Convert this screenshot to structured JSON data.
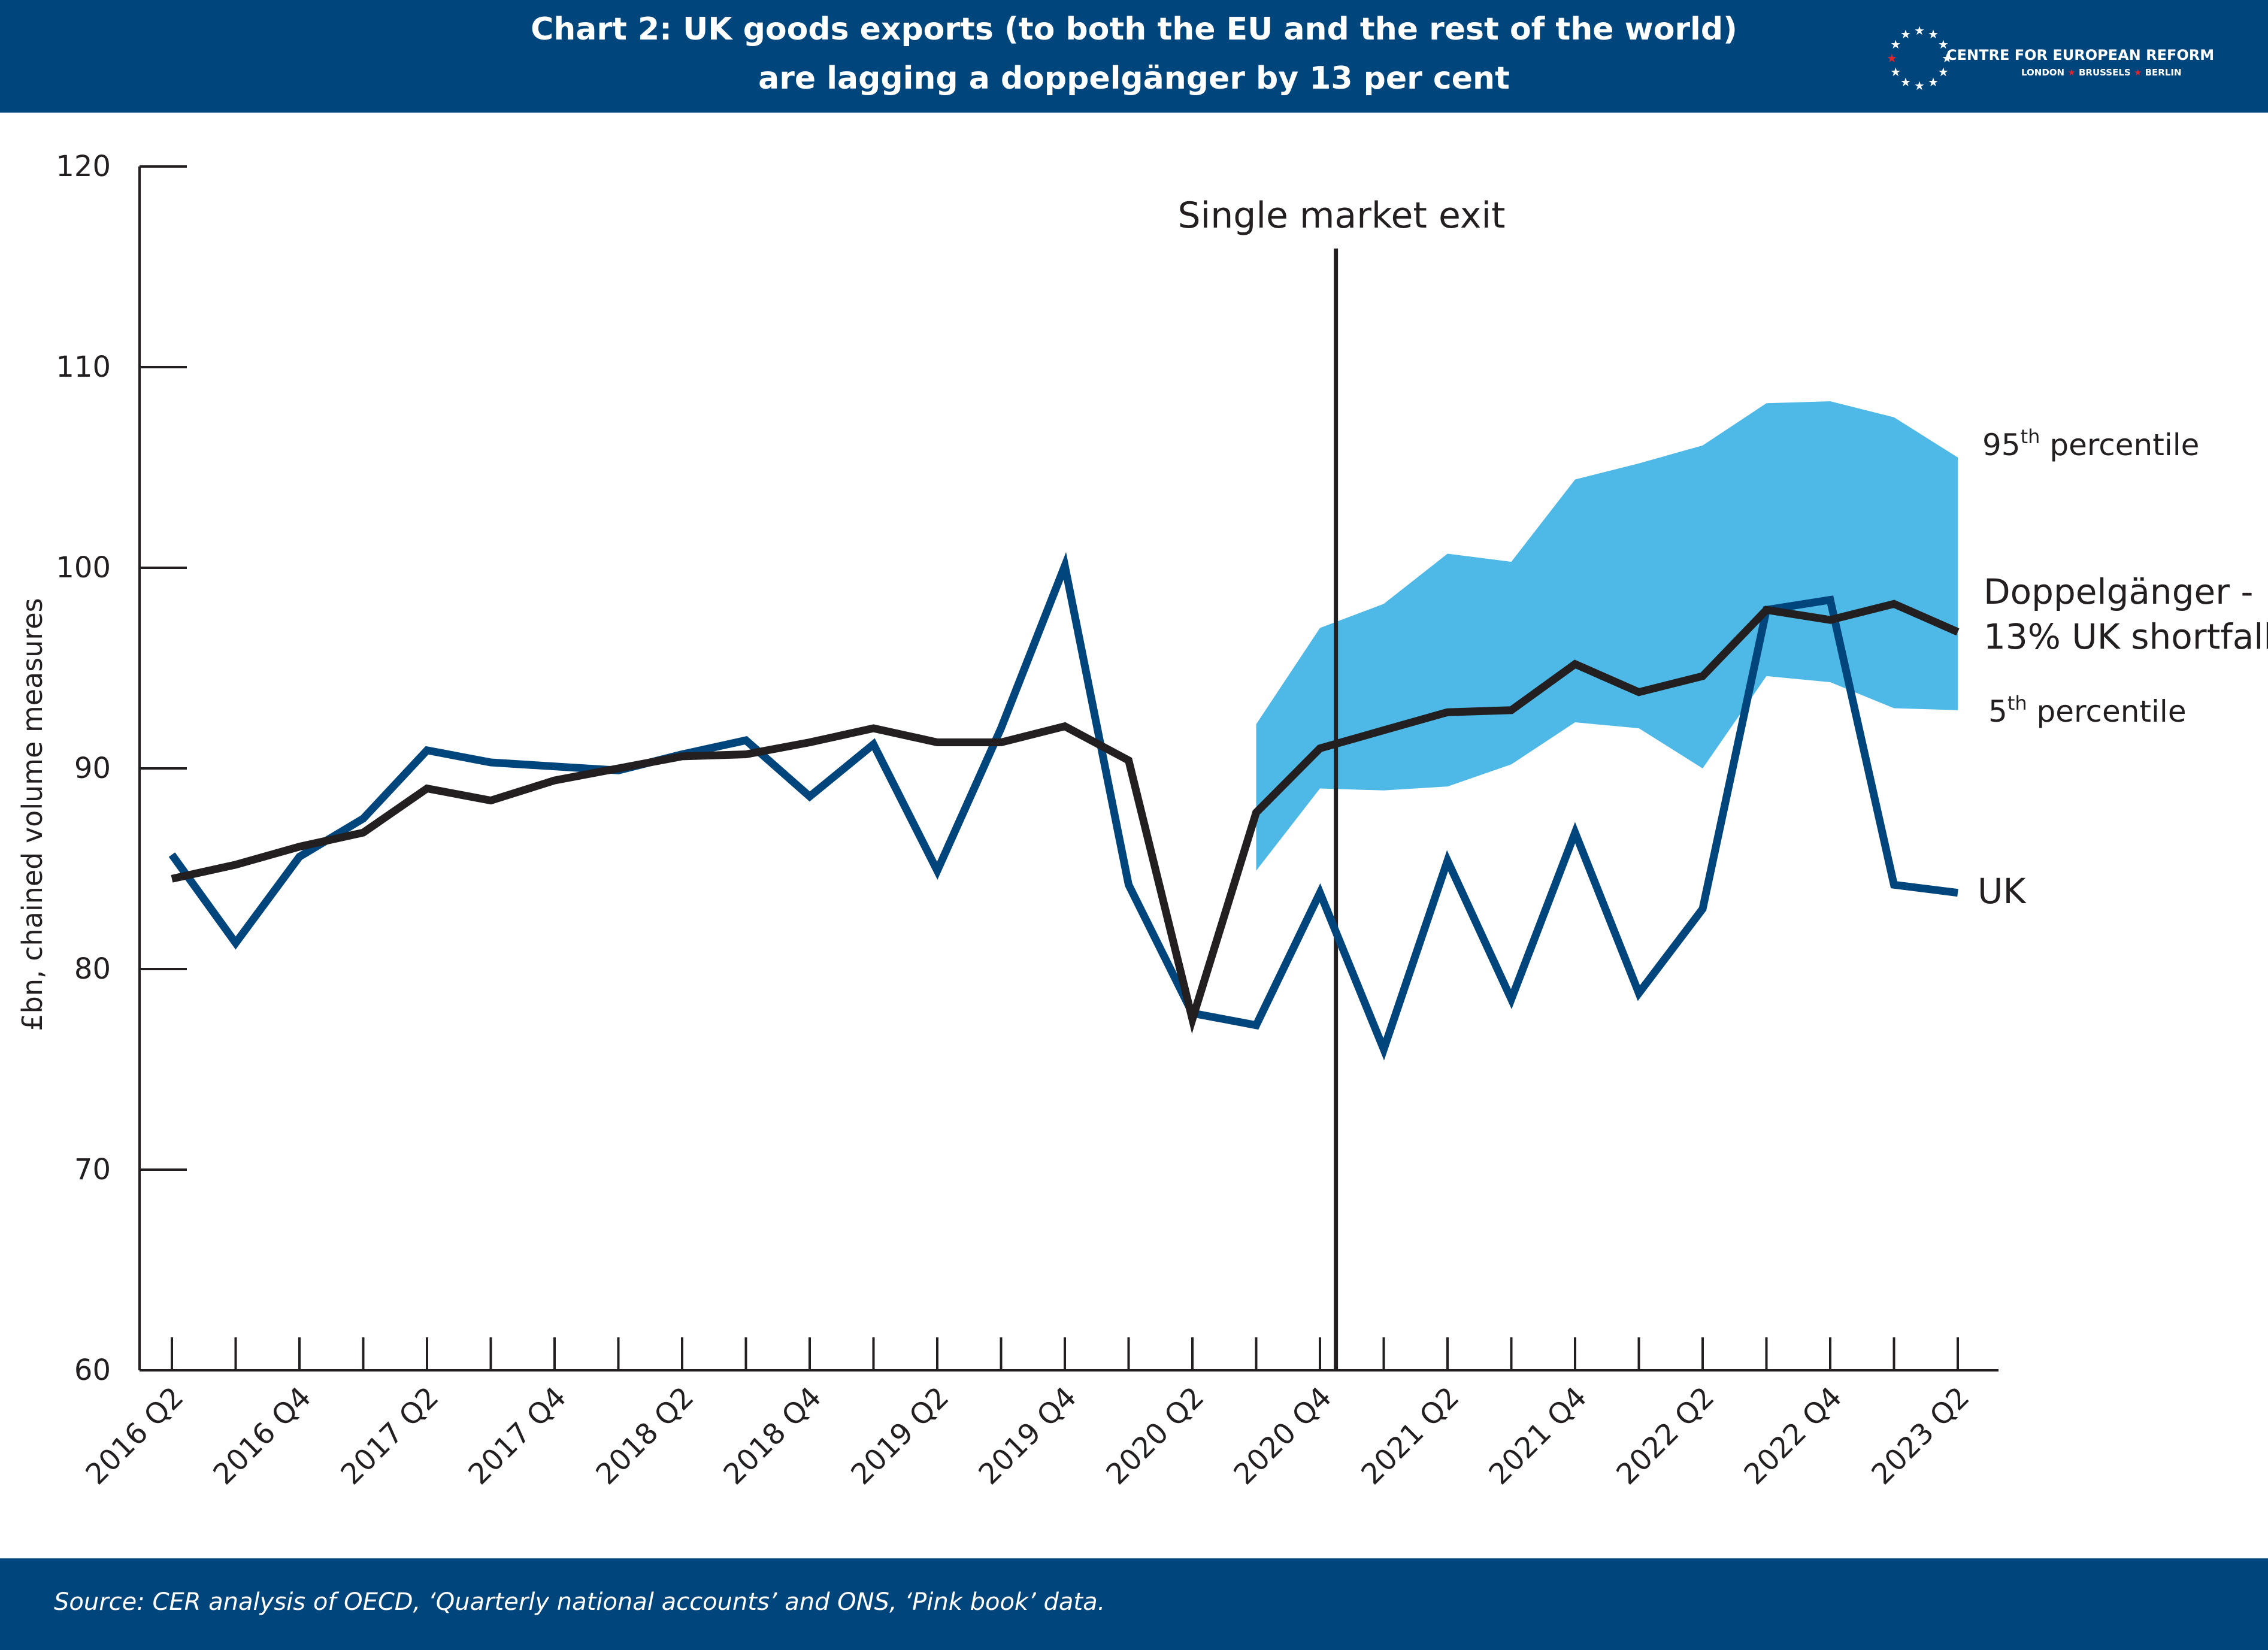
{
  "header": {
    "title_line1": "Chart 2: UK goods exports (to both the EU and the rest of the world)",
    "title_line2": "are lagging a doppelgänger by 13 per cent",
    "logo": {
      "name": "CENTRE FOR EUROPEAN REFORM",
      "city1": "LONDON",
      "city2": "BRUSSELS",
      "city3": "BERLIN",
      "icon": "star-ring-icon"
    }
  },
  "footer": {
    "source": "Source: CER analysis of OECD, ‘Quarterly national accounts’ and ONS, ‘Pink book’ data."
  },
  "colors": {
    "header_bg": "#00457c",
    "uk_line": "#00457c",
    "doppelganger_line": "#231f20",
    "band": "#4eb9e6",
    "logo_star_red": "#e3242b"
  },
  "chart_data": {
    "type": "line",
    "ylabel": "£bn, chained volume measures",
    "xlabel": "",
    "ylim": [
      60,
      120
    ],
    "yticks": [
      60,
      70,
      80,
      90,
      100,
      110,
      120
    ],
    "x": [
      "2016 Q2",
      "2016 Q3",
      "2016 Q4",
      "2017 Q1",
      "2017 Q2",
      "2017 Q3",
      "2017 Q4",
      "2018 Q1",
      "2018 Q2",
      "2018 Q3",
      "2018 Q4",
      "2019 Q1",
      "2019 Q2",
      "2019 Q3",
      "2019 Q4",
      "2020 Q1",
      "2020 Q2",
      "2020 Q3",
      "2020 Q4",
      "2021 Q1",
      "2021 Q2",
      "2021 Q3",
      "2021 Q4",
      "2022 Q1",
      "2022 Q2",
      "2022 Q3",
      "2022 Q4",
      "2023 Q1",
      "2023 Q2"
    ],
    "x_tick_labels": [
      "2016 Q2",
      "2016 Q4",
      "2017 Q2",
      "2017 Q4",
      "2018 Q2",
      "2018 Q4",
      "2019 Q2",
      "2019 Q4",
      "2020 Q2",
      "2020 Q4",
      "2021 Q2",
      "2021 Q4",
      "2022 Q2",
      "2022 Q4",
      "2023 Q2"
    ],
    "series": [
      {
        "name": "UK",
        "values": [
          85.7,
          81.3,
          85.6,
          87.5,
          90.9,
          90.3,
          90.1,
          89.9,
          90.7,
          91.4,
          88.6,
          91.2,
          84.9,
          92.0,
          100.1,
          84.2,
          77.8,
          77.2,
          83.8,
          76.0,
          85.4,
          78.5,
          86.8,
          78.8,
          83.0,
          97.9,
          98.4,
          84.2,
          83.8
        ]
      },
      {
        "name": "Doppelgänger - 13% UK shortfall",
        "values": [
          84.5,
          85.2,
          86.1,
          86.8,
          89.0,
          88.4,
          89.4,
          90.0,
          90.6,
          90.7,
          91.3,
          92.0,
          91.3,
          91.3,
          92.1,
          90.4,
          77.5,
          87.8,
          91.0,
          91.9,
          92.8,
          92.9,
          95.2,
          93.8,
          94.6,
          97.9,
          97.4,
          98.2,
          96.8
        ]
      }
    ],
    "band": {
      "upper_label": "95",
      "upper_label_sup": "th",
      "upper_label_rest": " percentile",
      "lower_label": "5",
      "lower_label_sup": "th",
      "lower_label_rest": " percentile",
      "start_index": 17,
      "upper": [
        92.2,
        97.0,
        98.2,
        100.7,
        100.3,
        104.4,
        105.2,
        106.1,
        108.2,
        108.3,
        107.5,
        105.5
      ],
      "lower": [
        84.9,
        89.0,
        88.9,
        89.1,
        90.2,
        92.3,
        92.0,
        90.0,
        94.6,
        94.3,
        93.0,
        92.9
      ]
    },
    "annotations": {
      "event_label": "Single market exit",
      "event_x_index": 18.25,
      "uk_label": "UK",
      "dopp_label_line1": "Doppelgänger -",
      "dopp_label_line2": "13% UK shortfall"
    },
    "grid": false,
    "legend": "none (direct labels at right)"
  }
}
